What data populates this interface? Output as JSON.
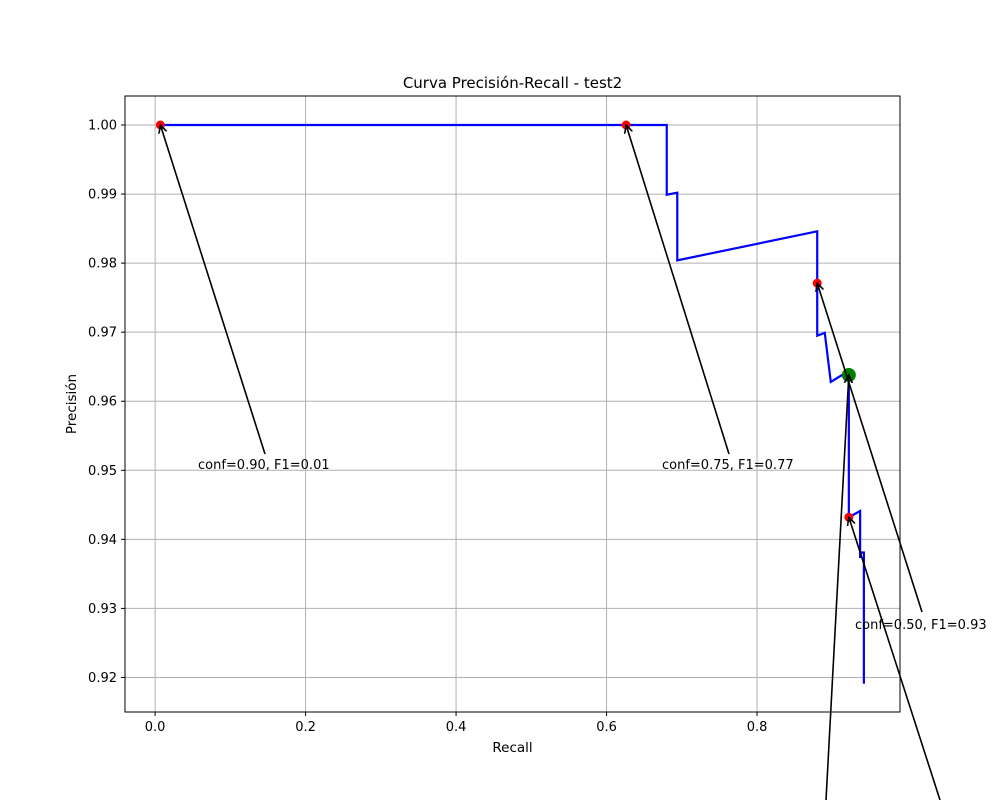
{
  "chart_data": {
    "type": "line",
    "title": "Curva Precisión-Recall - test2",
    "xlabel": "Recall",
    "ylabel": "Precisión",
    "xlim": [
      -0.04,
      0.99
    ],
    "ylim": [
      0.915,
      1.0042
    ],
    "xticks": [
      0.0,
      0.2,
      0.4,
      0.6,
      0.8
    ],
    "xtick_labels": [
      "0.0",
      "0.2",
      "0.4",
      "0.6",
      "0.8"
    ],
    "yticks": [
      0.92,
      0.93,
      0.94,
      0.95,
      0.96,
      0.97,
      0.98,
      0.99,
      1.0
    ],
    "ytick_labels": [
      "0.92",
      "0.93",
      "0.94",
      "0.95",
      "0.96",
      "0.97",
      "0.98",
      "0.99",
      "1.00"
    ],
    "grid": true,
    "series": [
      {
        "color": "#0000ff",
        "x": [
          0.007,
          0.68,
          0.68,
          0.68,
          0.694,
          0.694,
          0.88,
          0.88,
          0.88,
          0.89,
          0.89,
          0.898,
          0.898,
          0.913,
          0.922,
          0.922,
          0.937,
          0.937,
          0.938,
          0.942,
          0.942,
          0.942
        ],
        "y": [
          1.0,
          1.0,
          1.0,
          0.9899,
          0.9902,
          0.9804,
          0.9846,
          0.9771,
          0.9695,
          0.9699,
          0.9699,
          0.9628,
          0.9628,
          0.9638,
          0.9638,
          0.9432,
          0.9441,
          0.9373,
          0.9381,
          0.9381,
          0.9381,
          0.9191
        ]
      }
    ],
    "threshold_points": [
      {
        "x": 0.007,
        "y": 1.0,
        "color": "#ff0000"
      },
      {
        "x": 0.626,
        "y": 1.0,
        "color": "#ff0000"
      },
      {
        "x": 0.88,
        "y": 0.9771,
        "color": "#ff0000"
      },
      {
        "x": 0.922,
        "y": 0.9432,
        "color": "#ff0000"
      }
    ],
    "best_point": {
      "x": 0.922,
      "y": 0.9638,
      "color": "#008000"
    },
    "annotations": [
      {
        "text": "conf=0.90, F1=0.01",
        "x": 0.007,
        "y": 1.0
      },
      {
        "text": "conf=0.75, F1=0.77",
        "x": 0.626,
        "y": 1.0
      },
      {
        "text": "conf=0.50, F1=0.93",
        "x": 0.88,
        "y": 0.9771
      }
    ],
    "offscreen_annotations": [
      {
        "x": 0.922,
        "y": 0.9638
      },
      {
        "x": 0.922,
        "y": 0.9432
      }
    ]
  }
}
